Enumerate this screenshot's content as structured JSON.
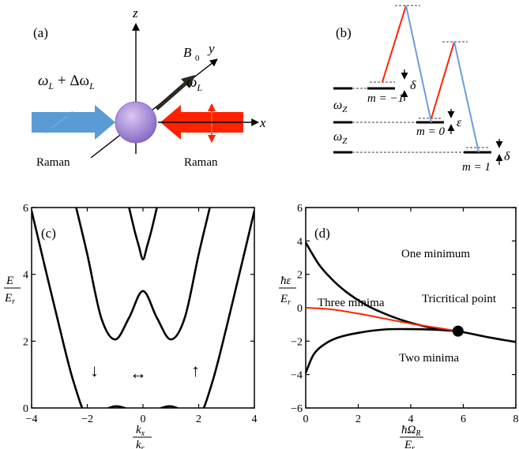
{
  "panels": {
    "a": {
      "label": "(a)",
      "axis_z": "z",
      "axis_y": "y",
      "axis_x": "x",
      "field_label": "B",
      "field_sub": "0",
      "left_beam_label": "ω",
      "left_beam_sub": "L",
      "left_beam_plus": " + Δω",
      "left_beam_sub2": "L",
      "right_beam_label": "ω",
      "right_beam_sub": "L",
      "left_caption": "Raman",
      "right_caption": "Raman",
      "colors": {
        "left_beam": "#5b9bd5",
        "right_beam": "#ff2200",
        "atom": "#a78fd6",
        "field_arrow": "#2a2a20"
      }
    },
    "b": {
      "label": "(b)",
      "level_m_minus1": "m = −1",
      "level_m_0": "m = 0",
      "level_m_1": "m = 1",
      "delta_top": "δ",
      "epsilon": "ε",
      "delta_bottom": "δ",
      "omega_z_1": "ω",
      "omega_z_1_sub": "Z",
      "omega_z_2": "ω",
      "omega_z_2_sub": "Z",
      "colors": {
        "up_transition": "#ff2200",
        "down_transition": "#6a9fd8"
      }
    },
    "c": {
      "label": "(c)",
      "ylabel_num": "E",
      "ylabel_den": "E",
      "ylabel_den_sub": "r",
      "xlabel_num": "k",
      "xlabel_num_sub": "x",
      "xlabel_den": "k",
      "xlabel_den_sub": "r",
      "spin_down_arrow": "↓",
      "spin_both_arrow": "↔",
      "spin_up_arrow": "↑"
    },
    "d": {
      "label": "(d)",
      "ylabel_num": "ħε",
      "ylabel_den": "E",
      "ylabel_den_sub": "r",
      "xlabel_num": "ħΩ",
      "xlabel_num_sub": "R",
      "xlabel_den": "E",
      "xlabel_den_sub": "r",
      "region_one": "One minimum",
      "region_three": "Three minima",
      "region_two": "Two minima",
      "tricritical": "Tricritical point",
      "colors": {
        "boundary": "#000000",
        "first_order": "#ff2200"
      }
    }
  },
  "chart_data": [
    {
      "type": "line",
      "panel": "c",
      "xlim": [
        -4,
        4
      ],
      "ylim": [
        0,
        6
      ],
      "x_ticks": [
        "−4",
        "−2",
        "0",
        "2",
        "4"
      ],
      "y_ticks": [
        "0",
        "2",
        "4",
        "6"
      ],
      "x_tick_values": [
        -4,
        -2,
        0,
        2,
        4
      ],
      "y_tick_values": [
        0,
        2,
        4,
        6
      ],
      "bands": [
        {
          "x": [
            -4,
            -3.5,
            -3,
            -2.5,
            -2,
            -1.5,
            -1,
            -0.5,
            0,
            0.5,
            1,
            1.5,
            2,
            2.5,
            3,
            3.5,
            4
          ],
          "y": [
            5.9,
            4.15,
            2.42,
            0.8,
            -0.28,
            -0.1,
            0.05,
            -0.05,
            -0.28,
            -0.05,
            0.05,
            -0.1,
            -0.28,
            0.8,
            2.42,
            4.15,
            5.9
          ]
        },
        {
          "x": [
            -2.4,
            -2,
            -1.5,
            -1,
            -0.5,
            0,
            0.5,
            1,
            1.5,
            2,
            2.4
          ],
          "y": [
            6.0,
            4.6,
            2.7,
            2.05,
            2.7,
            3.5,
            2.7,
            2.05,
            2.7,
            4.6,
            6.0
          ]
        },
        {
          "x": [
            -0.5,
            -0.3,
            -0.15,
            0,
            0.15,
            0.3,
            0.5
          ],
          "y": [
            6.0,
            5.3,
            4.85,
            4.45,
            4.85,
            5.3,
            6.0
          ]
        }
      ]
    },
    {
      "type": "line",
      "panel": "d",
      "xlim": [
        0,
        8
      ],
      "ylim": [
        -6,
        6
      ],
      "x_ticks": [
        "0",
        "2",
        "4",
        "6",
        "8"
      ],
      "y_ticks": [
        "−6",
        "−4",
        "−2",
        "0",
        "2",
        "4",
        "6"
      ],
      "x_tick_values": [
        0,
        2,
        4,
        6,
        8
      ],
      "y_tick_values": [
        -6,
        -4,
        -2,
        0,
        2,
        4,
        6
      ],
      "series": [
        {
          "x": [
            0,
            0.5,
            1,
            1.5,
            2,
            2.5,
            3,
            3.5,
            4,
            4.5,
            5,
            5.5,
            5.8,
            6.5,
            7,
            7.5,
            8
          ],
          "y": [
            3.9,
            2.6,
            1.7,
            1.0,
            0.45,
            0.0,
            -0.35,
            -0.65,
            -0.9,
            -1.1,
            -1.25,
            -1.35,
            -1.4,
            -1.62,
            -1.78,
            -1.92,
            -2.05
          ]
        },
        {
          "x": [
            0,
            0.3,
            0.7,
            1.2,
            2,
            3,
            4,
            5,
            5.8
          ],
          "y": [
            -3.9,
            -2.8,
            -2.2,
            -1.8,
            -1.5,
            -1.3,
            -1.28,
            -1.32,
            -1.4
          ]
        },
        {
          "x": [
            0,
            1,
            2,
            3,
            4,
            5,
            5.8
          ],
          "y": [
            0.0,
            -0.1,
            -0.35,
            -0.65,
            -0.95,
            -1.2,
            -1.4
          ]
        }
      ],
      "tricritical_point": {
        "x": 5.8,
        "y": -1.4
      }
    }
  ]
}
